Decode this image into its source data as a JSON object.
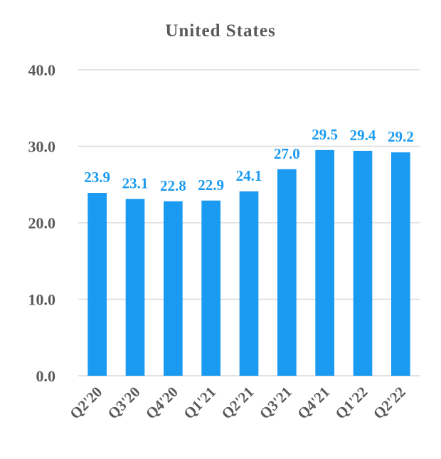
{
  "chart_data": {
    "type": "bar",
    "title": "United States",
    "categories": [
      "Q2'20",
      "Q3'20",
      "Q4'20",
      "Q1'21",
      "Q2'21",
      "Q3'21",
      "Q4'21",
      "Q1'22",
      "Q2'22"
    ],
    "values": [
      23.9,
      23.1,
      22.8,
      22.9,
      24.1,
      27.0,
      29.5,
      29.4,
      29.2
    ],
    "value_labels": [
      "23.9",
      "23.1",
      "22.8",
      "22.9",
      "24.1",
      "27.0",
      "29.5",
      "29.4",
      "29.2"
    ],
    "yticks": [
      0,
      10,
      20,
      30,
      40
    ],
    "ytick_labels": [
      "0.0",
      "10.0",
      "20.0",
      "30.0",
      "40.0"
    ],
    "ylim": [
      0,
      40
    ],
    "xlabel": "",
    "ylabel": "",
    "grid": true,
    "legend": "none"
  },
  "colors": {
    "bar": "#1a9af0",
    "data_label": "#1a9af0",
    "title": "#595959",
    "tick_label": "#595959",
    "grid": "#d9d9d9"
  }
}
